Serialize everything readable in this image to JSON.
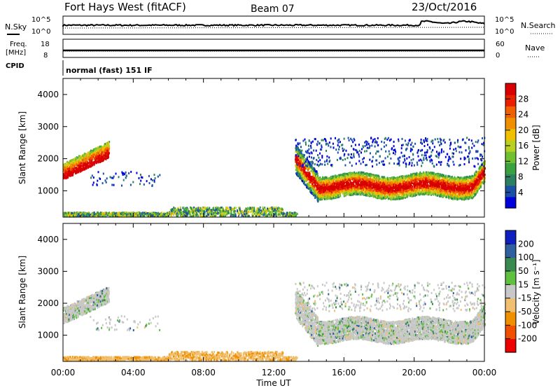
{
  "header": {
    "radar": "Fort Hays West (fitACF)",
    "beam": "Beam 07",
    "date": "23/Oct/2016"
  },
  "status_panels": {
    "nsky_label": "N.Sky",
    "nsky_ticks": [
      "10^5",
      "10^0"
    ],
    "nsearch_label": "N.Search",
    "nsearch_ticks": [
      "10^5",
      "10^0"
    ],
    "freq_label": [
      "Freq.",
      "[MHz]"
    ],
    "freq_ticks": [
      "18",
      "8"
    ],
    "nave_label": "Nave",
    "nave_ticks": [
      "60",
      "0"
    ],
    "cpid_label": "CPID",
    "cpid_text": "normal (fast) 151 IF"
  },
  "chart_data": [
    {
      "type": "heatmap",
      "name": "power",
      "ylabel": "Slant Range [km]",
      "xlabel": "",
      "y_ticks": [
        "4000",
        "3000",
        "2000",
        "1000"
      ],
      "x_ticks": [],
      "ylim": [
        180,
        4500
      ],
      "xlim": [
        "00:00",
        "24:00"
      ],
      "colorbar": {
        "label": "Power [dB]",
        "ticks": [
          "28",
          "24",
          "20",
          "16",
          "12",
          "8",
          "4"
        ],
        "range": [
          0,
          30
        ]
      }
    },
    {
      "type": "heatmap",
      "name": "velocity",
      "ylabel": "Slant Range [km]",
      "xlabel": "Time UT",
      "y_ticks": [
        "4000",
        "3000",
        "2000",
        "1000"
      ],
      "x_ticks": [
        "00:00",
        "04:00",
        "08:00",
        "12:00",
        "16:00",
        "20:00",
        "00:00"
      ],
      "ylim": [
        180,
        4500
      ],
      "xlim": [
        "00:00",
        "24:00"
      ],
      "colorbar": {
        "label": "Velocity [m s⁻¹]",
        "ticks": [
          "200",
          "100",
          "50",
          "15",
          "-15",
          "-50",
          "-100",
          "-200"
        ],
        "range": [
          -250,
          250
        ]
      }
    }
  ],
  "power_colors": [
    "#0000dd",
    "#1a50a8",
    "#2a8060",
    "#3aa040",
    "#70c030",
    "#b8d020",
    "#f0c000",
    "#f09000",
    "#f06000",
    "#e82000",
    "#d80000"
  ],
  "velocity_colors": [
    "#ee0000",
    "#f05000",
    "#f09000",
    "#f0c070",
    "#c8c8c8",
    "#60c040",
    "#3a8a50",
    "#3060a0",
    "#1020c0"
  ]
}
